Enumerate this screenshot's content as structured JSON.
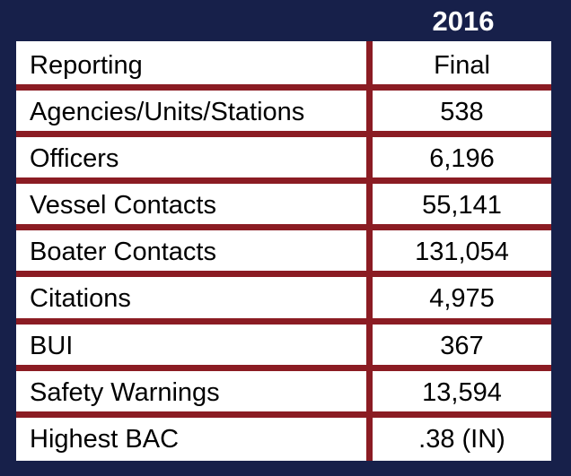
{
  "header": {
    "year": "2016"
  },
  "table": {
    "rows": [
      {
        "label": "Reporting",
        "value": "Final"
      },
      {
        "label": "Agencies/Units/Stations",
        "value": "538"
      },
      {
        "label": "Officers",
        "value": "6,196"
      },
      {
        "label": "Vessel Contacts",
        "value": "55,141"
      },
      {
        "label": "Boater Contacts",
        "value": "131,054"
      },
      {
        "label": "Citations",
        "value": "4,975"
      },
      {
        "label": "BUI",
        "value": "367"
      },
      {
        "label": "Safety Warnings",
        "value": "13,594"
      },
      {
        "label": "Highest BAC",
        "value": ".38 (IN)"
      }
    ]
  },
  "colors": {
    "background": "#17204a",
    "rule": "#8b1c23",
    "cell": "#ffffff"
  }
}
